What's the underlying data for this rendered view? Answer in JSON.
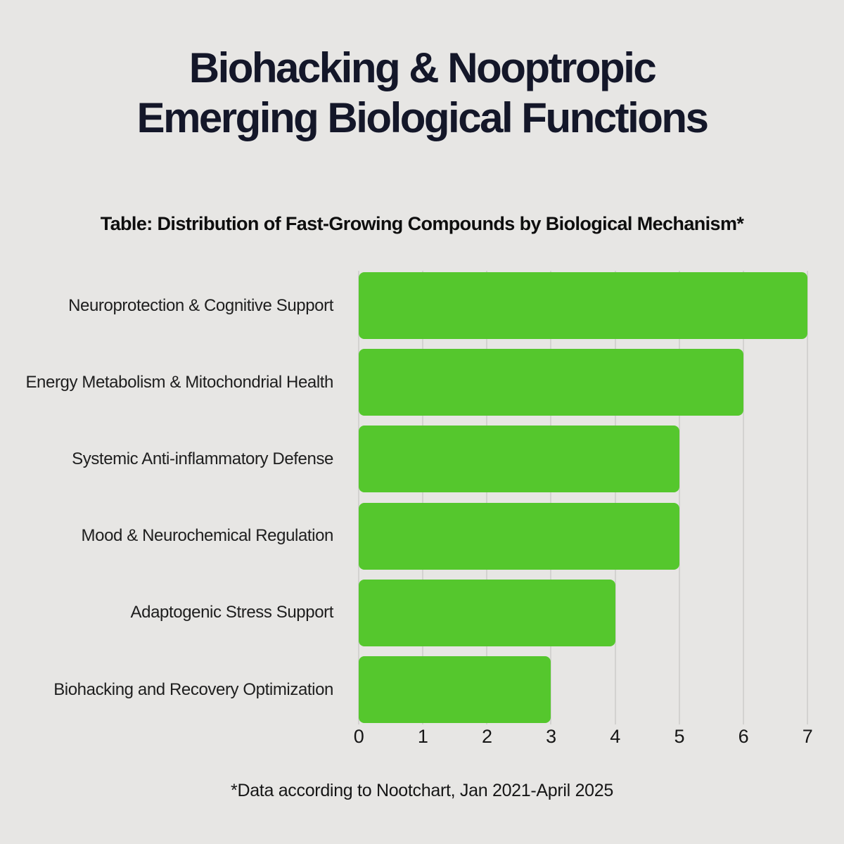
{
  "title": {
    "line1": "Biohacking & Nooptropic",
    "line2": "Emerging Biological Functions"
  },
  "subtitle": "Table: Distribution of Fast-Growing Compounds by Biological Mechanism*",
  "footnote": "*Data according to Nootchart, Jan 2021-April 2025",
  "colors": {
    "background": "#e7e6e4",
    "title_text": "#141729",
    "body_text": "#161616",
    "bar": "#55c72d",
    "gridline": "#d3d2d0"
  },
  "chart_data": {
    "type": "bar",
    "orientation": "horizontal",
    "title": "Table: Distribution of Fast-Growing Compounds by Biological Mechanism*",
    "categories": [
      "Neuroprotection & Cognitive Support",
      "Energy Metabolism & Mitochondrial Health",
      "Systemic Anti-inflammatory Defense",
      "Mood & Neurochemical Regulation",
      "Adaptogenic Stress Support",
      "Biohacking and Recovery Optimization"
    ],
    "values": [
      7,
      6,
      5,
      5,
      4,
      3
    ],
    "xlabel": "",
    "ylabel": "",
    "xlim": [
      0,
      7
    ],
    "xticks": [
      0,
      1,
      2,
      3,
      4,
      5,
      6,
      7
    ],
    "grid": true,
    "legend": false,
    "bar_color": "#55c72d"
  }
}
